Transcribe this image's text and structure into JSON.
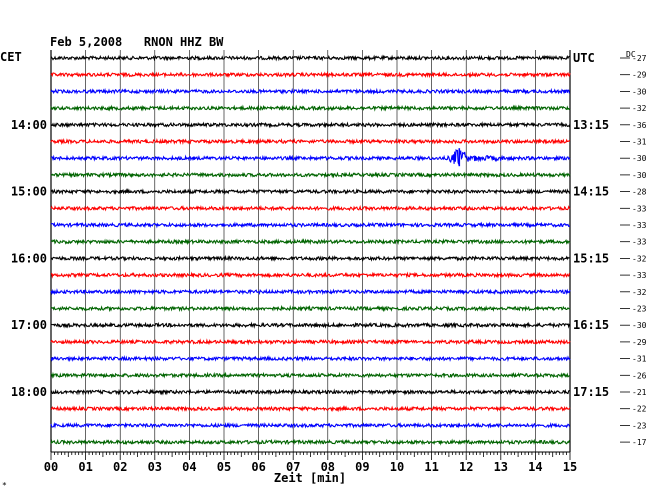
{
  "chart_data": {
    "type": "line",
    "title": "Feb 5,2008   RNON HHZ BW",
    "left_timezone_label": "CET",
    "right_timezone_label": "UTC",
    "offset_column_label": "DC",
    "xlabel": "Zeit [min]",
    "xlim": [
      0,
      15
    ],
    "x_tick_labels": [
      "00",
      "01",
      "02",
      "03",
      "04",
      "05",
      "06",
      "07",
      "08",
      "09",
      "10",
      "11",
      "12",
      "13",
      "14",
      "15"
    ],
    "trace_minutes": 15,
    "trace_colors": [
      "#000000",
      "#ff0000",
      "#0000ff",
      "#006400"
    ],
    "left_hour_labels": [
      {
        "trace_index": 4,
        "label": "14:00"
      },
      {
        "trace_index": 8,
        "label": "15:00"
      },
      {
        "trace_index": 12,
        "label": "16:00"
      },
      {
        "trace_index": 16,
        "label": "17:00"
      },
      {
        "trace_index": 20,
        "label": "18:00"
      }
    ],
    "right_hour_labels": [
      {
        "trace_index": 0,
        "label": "UTC"
      },
      {
        "trace_index": 4,
        "label": "13:15"
      },
      {
        "trace_index": 8,
        "label": "14:15"
      },
      {
        "trace_index": 12,
        "label": "15:15"
      },
      {
        "trace_index": 16,
        "label": "16:15"
      },
      {
        "trace_index": 20,
        "label": "17:15"
      }
    ],
    "trace_offsets": [
      -27,
      -29,
      -30,
      -32,
      -36,
      -31,
      -30,
      -30,
      -28,
      -33,
      -33,
      -33,
      -32,
      -33,
      -32,
      -23,
      -30,
      -29,
      -31,
      -26,
      -21,
      -22,
      -23,
      -17
    ],
    "events": [
      {
        "trace_index": 6,
        "minute": 11.8,
        "amplitude": "large"
      }
    ],
    "footer_mark": "*",
    "grid": true
  }
}
